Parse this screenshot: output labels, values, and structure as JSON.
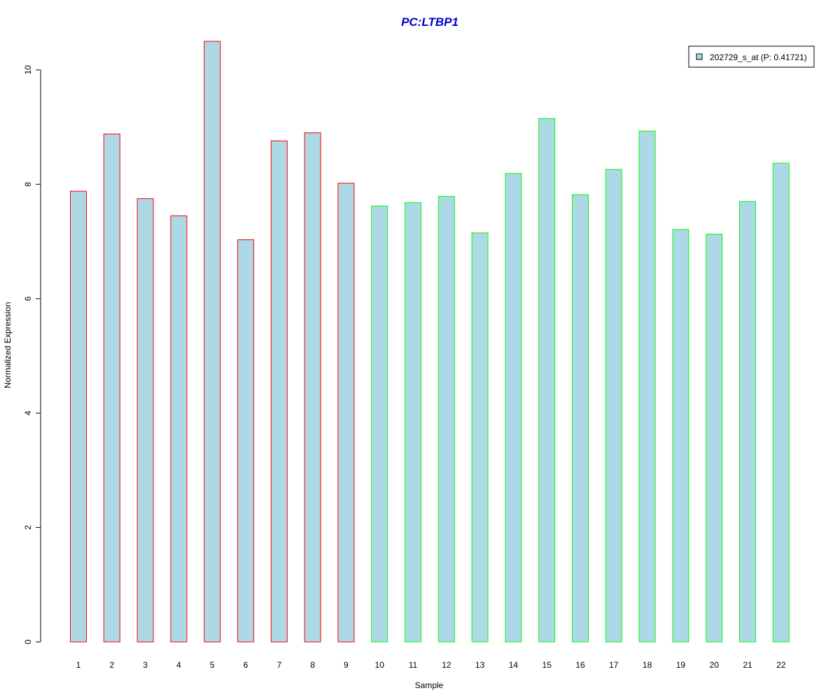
{
  "chart_data": {
    "type": "bar",
    "title": "PC:LTBP1",
    "xlabel": "Sample",
    "ylabel": "Normalized Expression",
    "categories": [
      "1",
      "2",
      "3",
      "4",
      "5",
      "6",
      "7",
      "8",
      "9",
      "10",
      "11",
      "12",
      "13",
      "14",
      "15",
      "16",
      "17",
      "18",
      "19",
      "20",
      "21",
      "22"
    ],
    "series": [
      {
        "name": "202729_s_at (P: 0.41721)",
        "values": [
          7.88,
          8.88,
          7.75,
          7.45,
          10.5,
          7.03,
          8.76,
          8.9,
          8.02,
          7.62,
          7.68,
          7.79,
          7.15,
          8.19,
          9.15,
          7.82,
          8.26,
          8.93,
          7.21,
          7.13,
          7.7,
          8.37
        ]
      }
    ],
    "group_of_sample": [
      0,
      0,
      0,
      0,
      0,
      0,
      0,
      0,
      0,
      1,
      1,
      1,
      1,
      1,
      1,
      1,
      1,
      1,
      1,
      1,
      1,
      1
    ],
    "ylim": [
      0,
      10.5
    ],
    "yticks": [
      0,
      2,
      4,
      6,
      8,
      10
    ],
    "grid": false,
    "legend_position": "top-right",
    "colors": {
      "fill": "#add8e6",
      "group_borders": [
        "#ff0000",
        "#00ff00"
      ],
      "title": "#0000cc"
    }
  }
}
